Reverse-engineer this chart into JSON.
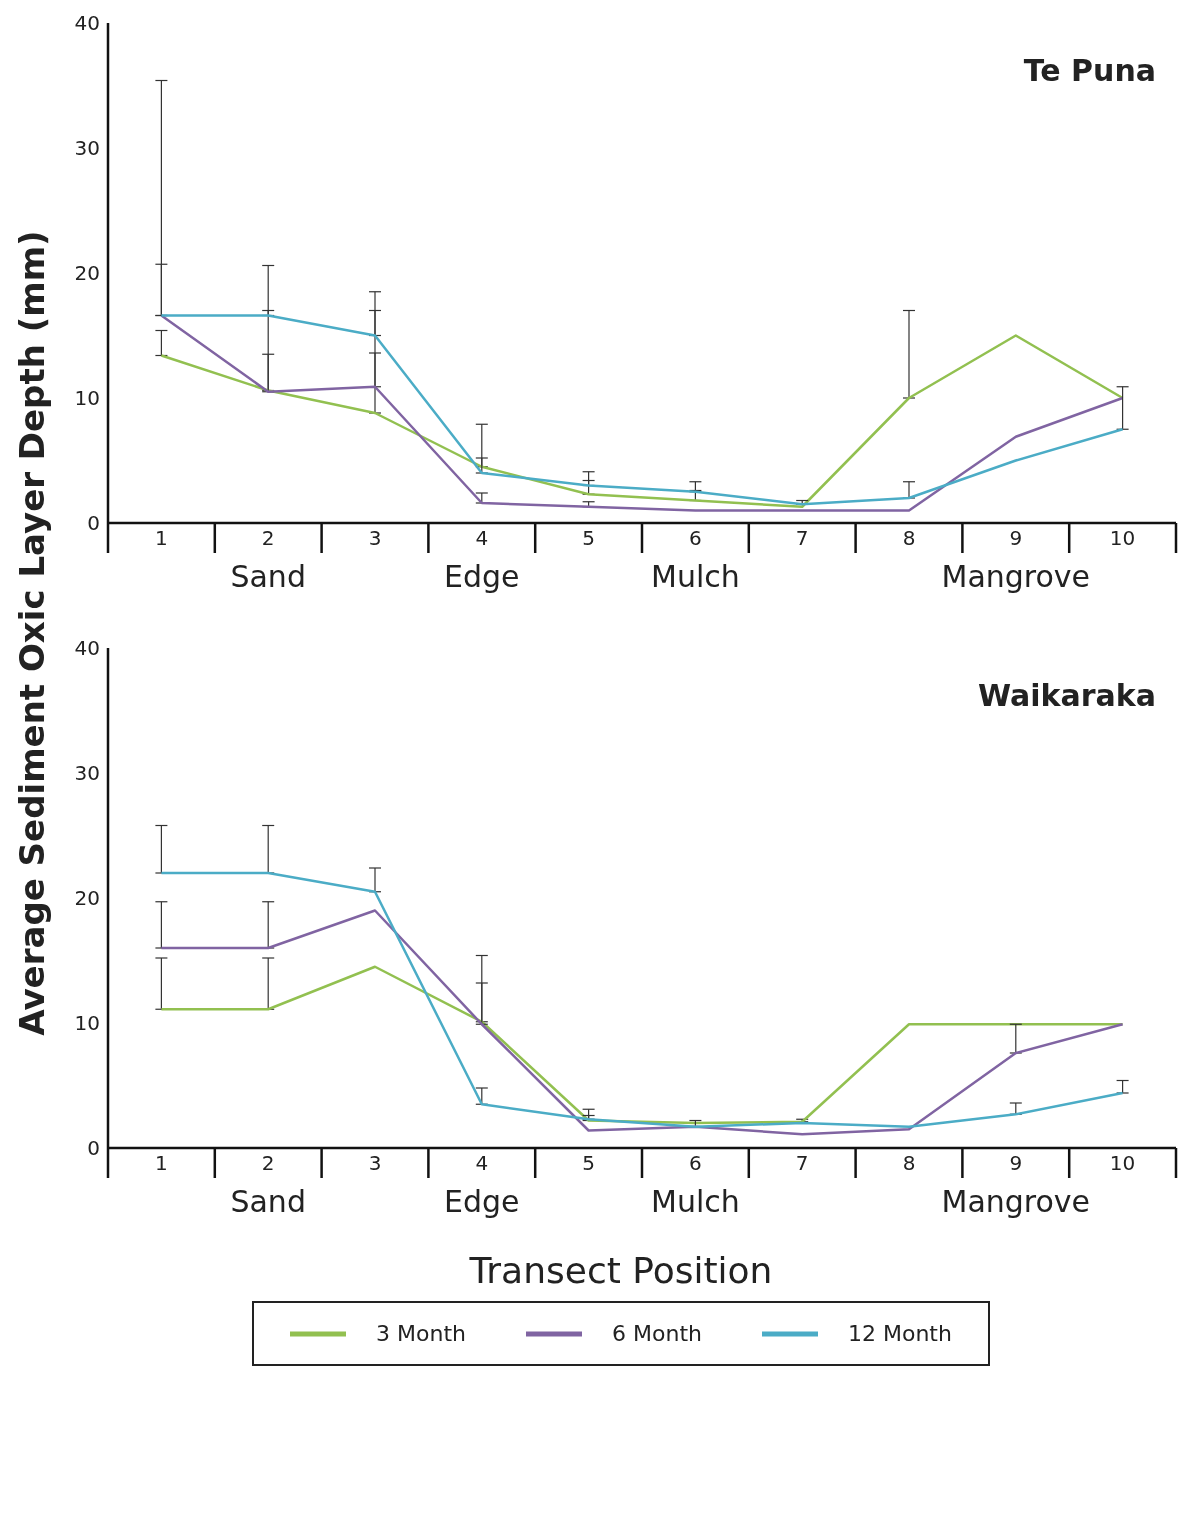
{
  "chart_data": [
    {
      "type": "line",
      "title": "Te Puna",
      "ylabel": "Average Sediment Oxic Layer Depth (mm)",
      "categories": [
        "1",
        "2",
        "3",
        "4",
        "5",
        "6",
        "7",
        "8",
        "9",
        "10"
      ],
      "ylim": [
        0,
        40
      ],
      "yticks": [
        0,
        10,
        20,
        30,
        40
      ],
      "grid": false,
      "marker": "none",
      "line_style": "solid",
      "legend": "bottom",
      "annotations": [
        "Sand",
        "Edge",
        "Mulch",
        "Mangrove"
      ],
      "series": [
        {
          "name": "3 Month",
          "color": "#92c050",
          "values": [
            13.4,
            10.6,
            8.8,
            4.5,
            2.3,
            1.8,
            1.3,
            10.0,
            15.0,
            10.0
          ],
          "errors": [
            [
              13.4,
              15.4
            ],
            [
              10.6,
              13.5
            ],
            [
              8.8,
              17.0
            ],
            [
              4.5,
              5.2
            ],
            [
              2.3,
              3.4
            ],
            [
              1.8,
              2.6
            ],
            null,
            [
              10.0,
              17.0
            ],
            null,
            null
          ]
        },
        {
          "name": "6 Month",
          "color": "#8064a2",
          "values": [
            16.6,
            10.5,
            10.9,
            1.6,
            1.3,
            1.0,
            1.0,
            1.0,
            6.9,
            10.0
          ],
          "errors": [
            [
              16.6,
              20.7
            ],
            [
              10.5,
              17.0
            ],
            [
              10.9,
              13.6
            ],
            [
              1.6,
              2.4
            ],
            [
              1.3,
              1.7
            ],
            null,
            null,
            null,
            null,
            null
          ]
        },
        {
          "name": "12 Month",
          "color": "#4bacc6",
          "values": [
            16.6,
            16.6,
            15.0,
            4.0,
            3.0,
            2.5,
            1.5,
            2.0,
            5.0,
            7.5
          ],
          "errors": [
            [
              16.6,
              35.4
            ],
            [
              16.6,
              20.6
            ],
            [
              15.0,
              18.5
            ],
            [
              4.0,
              7.9
            ],
            [
              3.0,
              4.1
            ],
            [
              2.5,
              3.3
            ],
            [
              1.5,
              1.8
            ],
            [
              2.0,
              3.3
            ],
            null,
            [
              7.5,
              10.9
            ]
          ]
        }
      ]
    },
    {
      "type": "line",
      "title": "Waikaraka",
      "xlabel": "Transect Position",
      "categories": [
        "1",
        "2",
        "3",
        "4",
        "5",
        "6",
        "7",
        "8",
        "9",
        "10"
      ],
      "ylim": [
        0,
        40
      ],
      "yticks": [
        0,
        10,
        20,
        30,
        40
      ],
      "grid": false,
      "marker": "none",
      "line_style": "solid",
      "legend": "bottom",
      "annotations": [
        "Sand",
        "Edge",
        "Mulch",
        "Mangrove"
      ],
      "series": [
        {
          "name": "3 Month",
          "color": "#92c050",
          "values": [
            11.1,
            11.1,
            14.5,
            10.1,
            2.2,
            2.0,
            2.1,
            9.9,
            9.9,
            9.9
          ],
          "errors": [
            [
              11.1,
              15.2
            ],
            [
              11.1,
              15.2
            ],
            null,
            [
              10.1,
              15.4
            ],
            [
              2.2,
              3.1
            ],
            null,
            [
              2.1,
              2.3
            ],
            null,
            null,
            null
          ]
        },
        {
          "name": "6 Month",
          "color": "#8064a2",
          "values": [
            16.0,
            16.0,
            19.0,
            9.9,
            1.4,
            1.7,
            1.1,
            1.5,
            7.6,
            9.9
          ],
          "errors": [
            [
              16.0,
              19.7
            ],
            [
              16.0,
              19.7
            ],
            null,
            [
              9.9,
              13.2
            ],
            null,
            [
              1.7,
              2.2
            ],
            null,
            null,
            [
              7.6,
              9.9
            ],
            null
          ]
        },
        {
          "name": "12 Month",
          "color": "#4bacc6",
          "values": [
            22.0,
            22.0,
            20.5,
            3.5,
            2.3,
            1.7,
            2.0,
            1.7,
            2.7,
            4.4
          ],
          "errors": [
            [
              22.0,
              25.8
            ],
            [
              22.0,
              25.8
            ],
            [
              20.5,
              22.4
            ],
            [
              3.5,
              4.8
            ],
            [
              2.3,
              2.6
            ],
            null,
            null,
            null,
            [
              2.7,
              3.6
            ],
            [
              4.4,
              5.4
            ]
          ]
        }
      ]
    }
  ]
}
